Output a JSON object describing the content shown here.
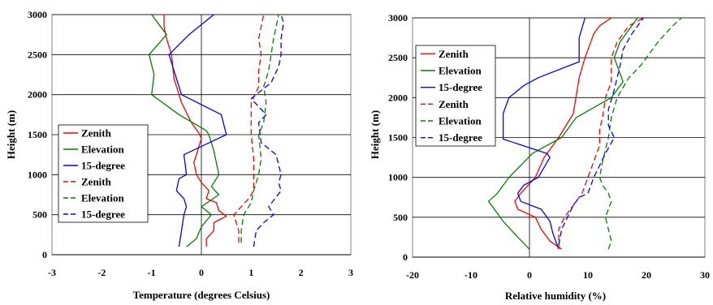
{
  "chart_data": [
    {
      "type": "line",
      "title": "",
      "xlabel": "Temperature (degrees Celsius)",
      "ylabel": "Height (m)",
      "xlim": [
        -3,
        3
      ],
      "ylim": [
        0,
        3000
      ],
      "xticks": [
        "-3",
        "-2",
        "-1",
        "0",
        "1",
        "2",
        "3"
      ],
      "yticks": [
        "0",
        "500",
        "1000",
        "1500",
        "2000",
        "2500",
        "3000"
      ],
      "grid": "horizontal",
      "legend_position": "left-middle",
      "series": [
        {
          "name": "Zenith",
          "color": "#ff0000",
          "style": "solid",
          "x": [
            0.1,
            0.1,
            0.25,
            0.25,
            0.5,
            0.35,
            0.3,
            0.1,
            0.15,
            0.0,
            -0.1,
            -0.15,
            0.0,
            -0.05,
            -0.2,
            -0.4,
            -0.55,
            -0.6,
            -0.7,
            -0.75,
            -0.75
          ],
          "y": [
            100,
            200,
            300,
            400,
            480,
            550,
            650,
            700,
            800,
            900,
            1000,
            1150,
            1450,
            1520,
            1650,
            1900,
            2200,
            2500,
            2700,
            2850,
            3000
          ]
        },
        {
          "name": "Elevation",
          "color": "#008000",
          "style": "solid",
          "x": [
            -0.3,
            -0.1,
            0.0,
            0.2,
            0.0,
            0.35,
            0.2,
            0.35,
            0.25,
            0.15,
            0.1,
            -0.45,
            -1.0,
            -0.95,
            -1.05,
            -0.7,
            -1.0
          ],
          "y": [
            100,
            200,
            350,
            500,
            600,
            750,
            850,
            1000,
            1300,
            1500,
            1550,
            1750,
            2000,
            2250,
            2500,
            2750,
            3000
          ]
        },
        {
          "name": "15-degree",
          "color": "#0000ff",
          "style": "solid",
          "x": [
            -0.45,
            -0.4,
            -0.35,
            -0.3,
            -0.35,
            -0.5,
            -0.45,
            -0.3,
            -0.35,
            0.5,
            0.4,
            -0.4,
            -0.65,
            -0.25,
            0.25
          ],
          "y": [
            100,
            300,
            500,
            600,
            700,
            800,
            950,
            1000,
            1250,
            1500,
            1750,
            2000,
            2500,
            2750,
            3000
          ]
        },
        {
          "name": "Zenith",
          "color": "#ff0000",
          "style": "dashed",
          "x": [
            0.75,
            0.75,
            0.7,
            0.65,
            0.8,
            0.95,
            1.05,
            1.05,
            1.05,
            1.0,
            1.0,
            1.0,
            1.15,
            1.15,
            1.2,
            1.15,
            1.2,
            1.25
          ],
          "y": [
            150,
            300,
            400,
            500,
            600,
            700,
            800,
            1000,
            1200,
            1500,
            1750,
            1900,
            2100,
            2300,
            2500,
            2700,
            2850,
            3000
          ]
        },
        {
          "name": "Elevation",
          "color": "#008000",
          "style": "dashed",
          "x": [
            0.8,
            0.8,
            0.85,
            1.0,
            1.05,
            1.15,
            1.2,
            1.15,
            1.25,
            1.3,
            1.25,
            1.35,
            1.4,
            1.45,
            1.5,
            1.55
          ],
          "y": [
            150,
            300,
            500,
            650,
            800,
            1000,
            1200,
            1500,
            1650,
            1900,
            2100,
            2300,
            2500,
            2700,
            2850,
            3000
          ]
        },
        {
          "name": "15-degree",
          "color": "#0000ff",
          "style": "dashed",
          "x": [
            1.05,
            1.1,
            1.25,
            1.45,
            1.35,
            1.6,
            1.55,
            1.6,
            1.5,
            1.2,
            1.15,
            1.3,
            1.0,
            1.4,
            1.55,
            1.6,
            1.6,
            1.65,
            1.6
          ],
          "y": [
            100,
            300,
            400,
            500,
            600,
            800,
            900,
            1000,
            1250,
            1400,
            1650,
            1750,
            1950,
            2150,
            2350,
            2500,
            2700,
            2900,
            3000
          ]
        }
      ]
    },
    {
      "type": "line",
      "title": "",
      "xlabel": "Relative humidity (%)",
      "ylabel": "Height (m)",
      "xlim": [
        -20,
        30
      ],
      "ylim": [
        0,
        3000
      ],
      "xticks": [
        "-20",
        "-10",
        "0",
        "10",
        "20",
        "30"
      ],
      "yticks": [
        "0",
        "500",
        "1000",
        "1500",
        "2000",
        "2500",
        "3000"
      ],
      "grid": "horizontal",
      "legend_position": "top-left",
      "series": [
        {
          "name": "Zenith",
          "color": "#ff0000",
          "style": "solid",
          "x": [
            5.5,
            3.5,
            2.0,
            1.0,
            -2.0,
            -2.5,
            -1.5,
            1.0,
            2.5,
            5.0,
            7.5,
            8.5,
            9.5,
            11.0,
            12.0,
            13.0,
            14.0
          ],
          "y": [
            100,
            200,
            350,
            500,
            600,
            700,
            800,
            1000,
            1250,
            1500,
            1800,
            2250,
            2500,
            2800,
            2900,
            2950,
            3000
          ]
        },
        {
          "name": "Elevation",
          "color": "#008000",
          "style": "solid",
          "x": [
            0.0,
            -2.0,
            -4.5,
            -7.0,
            -5.5,
            -3.5,
            -1.5,
            0.5,
            3.0,
            5.5,
            8.0,
            14.0,
            16.0,
            14.5,
            15.5,
            17.0,
            18.5
          ],
          "y": [
            100,
            250,
            450,
            700,
            800,
            1000,
            1150,
            1300,
            1400,
            1500,
            1750,
            2000,
            2200,
            2500,
            2700,
            2850,
            3000
          ]
        },
        {
          "name": "15-degree",
          "color": "#0000ff",
          "style": "solid",
          "x": [
            5.0,
            4.0,
            3.5,
            2.0,
            -1.5,
            -2.0,
            -1.0,
            1.5,
            3.5,
            3.0,
            -4.5,
            -4.5,
            -3.5,
            -1.0,
            1.5,
            8.5,
            8.5,
            9.5
          ],
          "y": [
            100,
            300,
            450,
            600,
            700,
            800,
            900,
            1000,
            1250,
            1300,
            1480,
            1800,
            2000,
            2150,
            2250,
            2450,
            2750,
            3000
          ]
        },
        {
          "name": "Zenith",
          "color": "#ff0000",
          "style": "dashed",
          "x": [
            5.0,
            5.0,
            6.0,
            8.0,
            9.0,
            10.0,
            11.0,
            12.0,
            12.0,
            12.5,
            13.0,
            14.0,
            14.0,
            15.0,
            17.0,
            19.5
          ],
          "y": [
            100,
            350,
            500,
            700,
            800,
            1000,
            1200,
            1400,
            1600,
            1750,
            2000,
            2200,
            2500,
            2700,
            2900,
            3000
          ]
        },
        {
          "name": "Elevation",
          "color": "#008000",
          "style": "dashed",
          "x": [
            13.5,
            14.0,
            13.5,
            13.0,
            14.0,
            13.5,
            12.5,
            12.0,
            12.5,
            13.5,
            14.0,
            15.0,
            17.0,
            19.0,
            20.5,
            22.0,
            24.5,
            26.0
          ],
          "y": [
            100,
            200,
            350,
            500,
            700,
            800,
            900,
            1000,
            1200,
            1500,
            1750,
            2000,
            2250,
            2400,
            2550,
            2700,
            2900,
            3000
          ]
        },
        {
          "name": "15-degree",
          "color": "#0000ff",
          "style": "dashed",
          "x": [
            5.0,
            5.5,
            6.5,
            7.5,
            8.5,
            10.0,
            10.5,
            11.0,
            12.0,
            13.0,
            14.5,
            13.5,
            13.5,
            14.5,
            15.5,
            16.0,
            17.5,
            19.5
          ],
          "y": [
            150,
            350,
            500,
            650,
            750,
            800,
            900,
            1000,
            1150,
            1300,
            1500,
            1650,
            1850,
            2100,
            2400,
            2600,
            2800,
            3000
          ]
        }
      ]
    }
  ]
}
